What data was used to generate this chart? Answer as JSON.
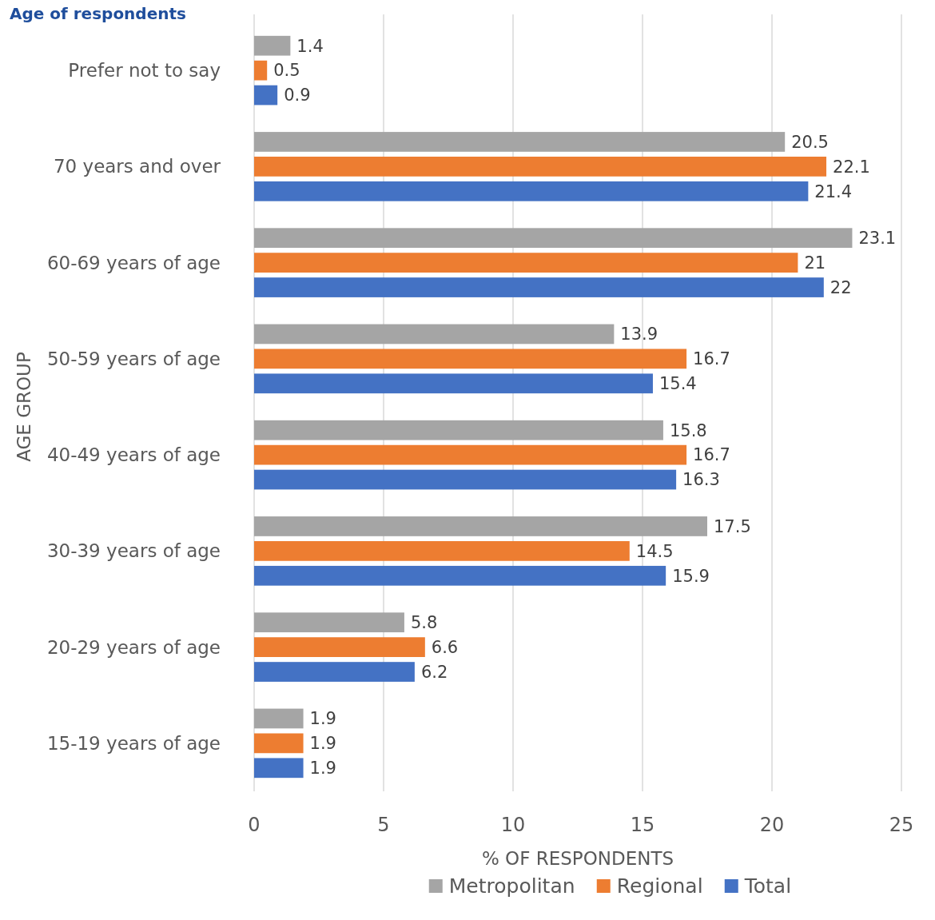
{
  "chart_data": {
    "type": "bar",
    "orientation": "horizontal",
    "title": "Age of respondents",
    "xlabel": "% OF RESPONDENTS",
    "ylabel": "AGE GROUP",
    "categories": [
      "Prefer not to say",
      "70 years and over",
      "60-69 years of age",
      "50-59 years of age",
      "40-49 years of age",
      "30-39 years of age",
      "20-29 years of age",
      "15-19 years of age"
    ],
    "series": [
      {
        "name": "Metropolitan",
        "color": "#a5a5a5",
        "values": [
          1.4,
          20.5,
          23.1,
          13.9,
          15.8,
          17.5,
          5.8,
          1.9
        ]
      },
      {
        "name": "Regional",
        "color": "#ed7d31",
        "values": [
          0.5,
          22.1,
          21,
          16.7,
          16.7,
          14.5,
          6.6,
          1.9
        ]
      },
      {
        "name": "Total",
        "color": "#4472c4",
        "values": [
          0.9,
          21.4,
          22,
          15.4,
          16.3,
          15.9,
          6.2,
          1.9
        ]
      }
    ],
    "xlim": [
      0,
      25
    ],
    "xticks": [
      0,
      5,
      10,
      15,
      20,
      25
    ],
    "grid": "x",
    "data_labels": true,
    "legend": "bottom"
  }
}
